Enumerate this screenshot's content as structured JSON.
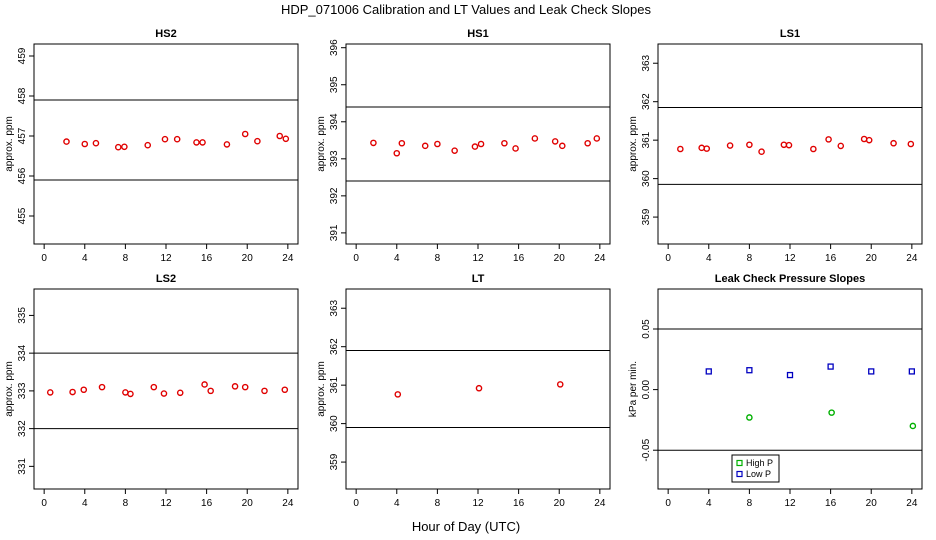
{
  "figure_title": "HDP_071006  Calibration and LT Values and Leak Check Slopes",
  "common_xlabel": "Hour of Day (UTC)",
  "chart_data": [
    {
      "type": "scatter",
      "title": "HS2",
      "ylabel": "approx. ppm",
      "xlim": [
        -1,
        25
      ],
      "ylim": [
        454.3,
        459.3
      ],
      "xticks": [
        0,
        4,
        8,
        12,
        16,
        20,
        24
      ],
      "yticks": [
        455,
        456,
        457,
        458,
        459
      ],
      "hlines": [
        455.9,
        457.9
      ],
      "series": [
        {
          "color": "#e00000",
          "x": [
            2.2,
            4.0,
            5.1,
            7.3,
            7.9,
            10.2,
            11.9,
            13.1,
            15.0,
            15.6,
            18.0,
            19.8,
            21.0,
            23.2,
            23.8
          ],
          "y": [
            456.86,
            456.8,
            456.82,
            456.72,
            456.73,
            456.77,
            456.92,
            456.92,
            456.84,
            456.84,
            456.79,
            457.05,
            456.87,
            457.0,
            456.93
          ]
        }
      ]
    },
    {
      "type": "scatter",
      "title": "HS1",
      "ylabel": "approx. ppm",
      "xlim": [
        -1,
        25
      ],
      "ylim": [
        390.7,
        396.1
      ],
      "xticks": [
        0,
        4,
        8,
        12,
        16,
        20,
        24
      ],
      "yticks": [
        391,
        392,
        393,
        394,
        395,
        396
      ],
      "hlines": [
        392.4,
        394.4
      ],
      "series": [
        {
          "color": "#e00000",
          "x": [
            1.7,
            4.0,
            4.5,
            6.8,
            8.0,
            9.7,
            11.7,
            12.3,
            14.6,
            15.7,
            17.6,
            19.6,
            20.3,
            22.8,
            23.7
          ],
          "y": [
            393.43,
            393.15,
            393.42,
            393.35,
            393.4,
            393.22,
            393.33,
            393.4,
            393.42,
            393.28,
            393.55,
            393.47,
            393.35,
            393.42,
            393.55
          ]
        }
      ]
    },
    {
      "type": "scatter",
      "title": "LS1",
      "ylabel": "approx. ppm",
      "xlim": [
        -1,
        25
      ],
      "ylim": [
        358.3,
        363.5
      ],
      "xticks": [
        0,
        4,
        8,
        12,
        16,
        20,
        24
      ],
      "yticks": [
        359,
        360,
        361,
        362,
        363
      ],
      "hlines": [
        359.85,
        361.85
      ],
      "series": [
        {
          "color": "#e00000",
          "x": [
            1.2,
            3.3,
            3.8,
            6.1,
            8.0,
            9.2,
            11.4,
            11.9,
            14.3,
            15.8,
            17.0,
            19.3,
            19.8,
            22.2,
            23.9
          ],
          "y": [
            360.77,
            360.8,
            360.78,
            360.86,
            360.88,
            360.7,
            360.88,
            360.87,
            360.77,
            361.02,
            360.85,
            361.03,
            361.0,
            360.92,
            360.9
          ]
        }
      ]
    },
    {
      "type": "scatter",
      "title": "LS2",
      "ylabel": "approx. ppm",
      "xlim": [
        -1,
        25
      ],
      "ylim": [
        330.4,
        335.7
      ],
      "xticks": [
        0,
        4,
        8,
        12,
        16,
        20,
        24
      ],
      "yticks": [
        331,
        332,
        333,
        334,
        335
      ],
      "hlines": [
        332.0,
        334.0
      ],
      "series": [
        {
          "color": "#e00000",
          "x": [
            0.6,
            2.8,
            3.9,
            5.7,
            8.0,
            8.5,
            10.8,
            11.8,
            13.4,
            15.8,
            16.4,
            18.8,
            19.8,
            21.7,
            23.7
          ],
          "y": [
            332.96,
            332.97,
            333.03,
            333.1,
            332.96,
            332.92,
            333.1,
            332.93,
            332.95,
            333.17,
            333.0,
            333.12,
            333.1,
            333.0,
            333.03
          ]
        }
      ]
    },
    {
      "type": "scatter",
      "title": "LT",
      "ylabel": "approx. ppm",
      "xlim": [
        -1,
        25
      ],
      "ylim": [
        358.3,
        363.5
      ],
      "xticks": [
        0,
        4,
        8,
        12,
        16,
        20,
        24
      ],
      "yticks": [
        359,
        360,
        361,
        362,
        363
      ],
      "hlines": [
        359.9,
        361.9
      ],
      "series": [
        {
          "color": "#e00000",
          "x": [
            4.1,
            12.1,
            20.1
          ],
          "y": [
            360.76,
            360.92,
            361.02
          ]
        }
      ]
    },
    {
      "type": "scatter",
      "title": "Leak Check Pressure Slopes",
      "ylabel": "kPa per min.",
      "xlim": [
        -1,
        25
      ],
      "ylim": [
        -0.082,
        0.083
      ],
      "xticks": [
        0,
        4,
        8,
        12,
        16,
        20,
        24
      ],
      "yticks": [
        -0.05,
        0.0,
        0.05
      ],
      "ytick_labels": [
        "-0.05",
        "0.00",
        "0.05"
      ],
      "hlines": [
        -0.05,
        0.05
      ],
      "legend": {
        "position": "bottom-center",
        "entries": [
          "High P",
          "Low P"
        ]
      },
      "series": [
        {
          "name": "High P",
          "color": "#00b000",
          "x": [
            8.0,
            16.1,
            24.1
          ],
          "y": [
            -0.023,
            -0.019,
            -0.03
          ]
        },
        {
          "name": "Low P",
          "color": "#0000c0",
          "x": [
            4.0,
            8.0,
            12.0,
            16.0,
            20.0,
            24.0
          ],
          "y": [
            0.015,
            0.016,
            0.012,
            0.019,
            0.015,
            0.015
          ]
        }
      ]
    }
  ]
}
